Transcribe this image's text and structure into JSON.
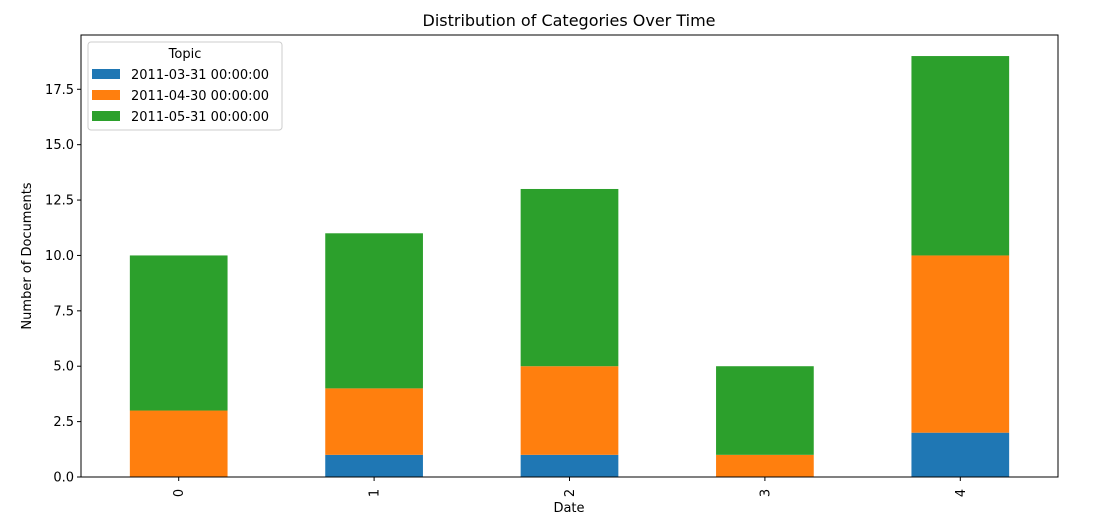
{
  "chart_data": {
    "type": "bar",
    "stacked": true,
    "title": "Distribution of Categories Over Time",
    "xlabel": "Date",
    "ylabel": "Number of Documents",
    "categories": [
      "0",
      "1",
      "2",
      "3",
      "4"
    ],
    "x_tick_rotation": 90,
    "ylim": [
      0,
      19.95
    ],
    "yticks": [
      0.0,
      2.5,
      5.0,
      7.5,
      10.0,
      12.5,
      15.0,
      17.5
    ],
    "ytick_labels": [
      "0.0",
      "2.5",
      "5.0",
      "7.5",
      "10.0",
      "12.5",
      "15.0",
      "17.5"
    ],
    "grid": false,
    "legend": {
      "title": "Topic",
      "placement": "top-left"
    },
    "series": [
      {
        "name": "2011-03-31 00:00:00",
        "color": "#1f77b4",
        "values": [
          0,
          1,
          1,
          0,
          2
        ]
      },
      {
        "name": "2011-04-30 00:00:00",
        "color": "#ff7f0e",
        "values": [
          3,
          3,
          4,
          1,
          8
        ]
      },
      {
        "name": "2011-05-31 00:00:00",
        "color": "#2ca02c",
        "values": [
          7,
          7,
          8,
          4,
          9
        ]
      }
    ]
  }
}
